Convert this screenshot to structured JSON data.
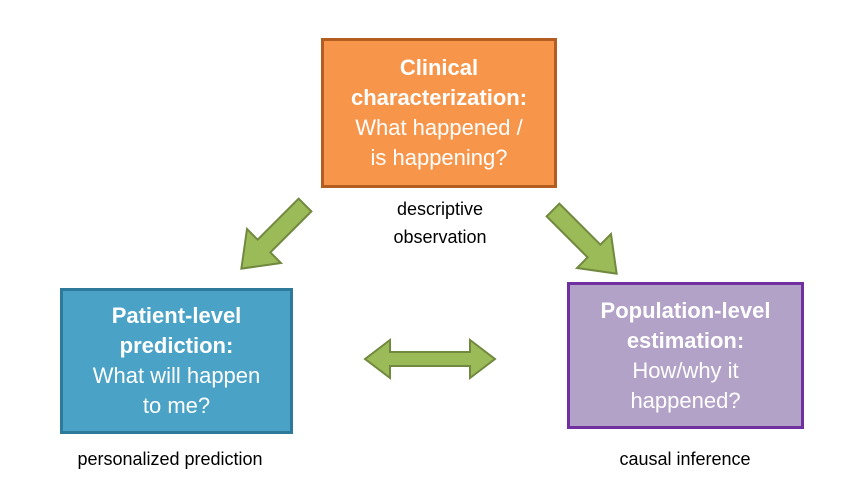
{
  "top_box": {
    "title_line1": "Clinical",
    "title_line2": "characterization:",
    "question_line1": "What happened /",
    "question_line2": "is happening?",
    "caption_line1": "descriptive",
    "caption_line2": "observation",
    "fill": "#f7964a"
  },
  "left_box": {
    "title_line1": "Patient-level",
    "title_line2": "prediction:",
    "question_line1": "What will happen",
    "question_line2": "to me?",
    "caption": "personalized prediction",
    "fill": "#4aa2c6"
  },
  "right_box": {
    "title_line1": "Population-level",
    "title_line2": "estimation:",
    "question_line1": "How/why it",
    "question_line2": "happened?",
    "caption": "causal inference",
    "fill": "#b3a2c7"
  },
  "arrow_color": "#9bbb59"
}
